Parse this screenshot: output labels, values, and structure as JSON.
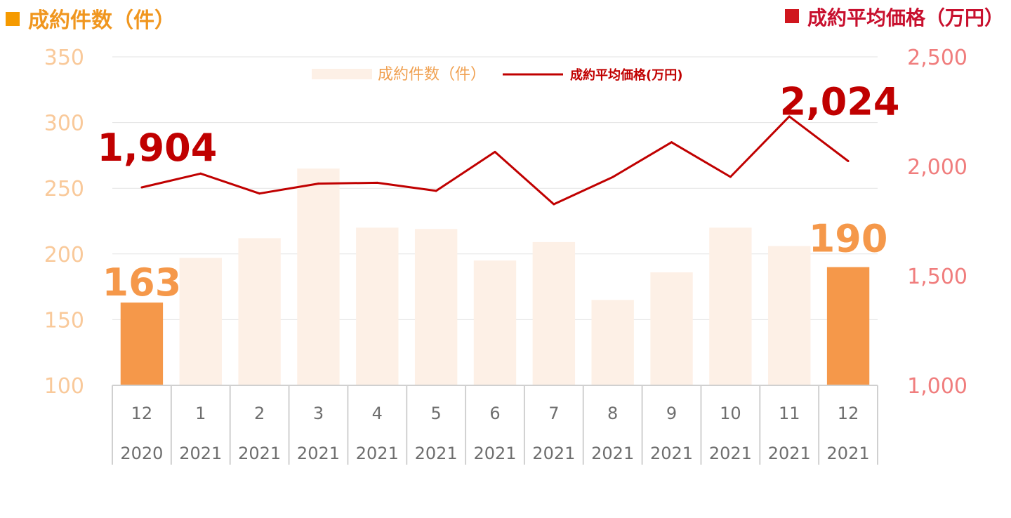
{
  "header_left": {
    "label": "成約件数（件）",
    "color": "#f0961e"
  },
  "header_right": {
    "label": "成約平均価格（万円）",
    "color": "#c8102e"
  },
  "chart_data": {
    "type": "bar+line",
    "categories": [
      {
        "month": "12",
        "year": "2020"
      },
      {
        "month": "1",
        "year": "2021"
      },
      {
        "month": "2",
        "year": "2021"
      },
      {
        "month": "3",
        "year": "2021"
      },
      {
        "month": "4",
        "year": "2021"
      },
      {
        "month": "5",
        "year": "2021"
      },
      {
        "month": "6",
        "year": "2021"
      },
      {
        "month": "7",
        "year": "2021"
      },
      {
        "month": "8",
        "year": "2021"
      },
      {
        "month": "9",
        "year": "2021"
      },
      {
        "month": "10",
        "year": "2021"
      },
      {
        "month": "11",
        "year": "2021"
      },
      {
        "month": "12",
        "year": "2021"
      }
    ],
    "bar_series": {
      "name": "成約件数（件）",
      "values": [
        163,
        197,
        212,
        265,
        220,
        219,
        195,
        209,
        165,
        186,
        220,
        206,
        190
      ],
      "highlight_indices": [
        0,
        12
      ],
      "color_highlight": "#f5984a",
      "color_normal": "#fdf0e6"
    },
    "line_series": {
      "name": "成約平均価格(万円)",
      "values": [
        1904,
        1967,
        1876,
        1921,
        1925,
        1888,
        2066,
        1827,
        1951,
        2110,
        1952,
        2228,
        2024
      ],
      "color": "#c00000"
    },
    "left_axis": {
      "ylim": [
        100,
        350
      ],
      "ticks": [
        "100",
        "150",
        "200",
        "250",
        "300",
        "350"
      ],
      "color": "#f9c99a"
    },
    "right_axis": {
      "ylim": [
        1000,
        2500
      ],
      "ticks": [
        "1,000",
        "1,500",
        "2,000",
        "2,500"
      ],
      "color": "#f07d7d"
    },
    "annotations": {
      "bar_first": "163",
      "bar_last": "190",
      "line_first": "1,904",
      "line_last": "2,024"
    },
    "legend": {
      "placement": "top-center"
    },
    "grid": true
  }
}
